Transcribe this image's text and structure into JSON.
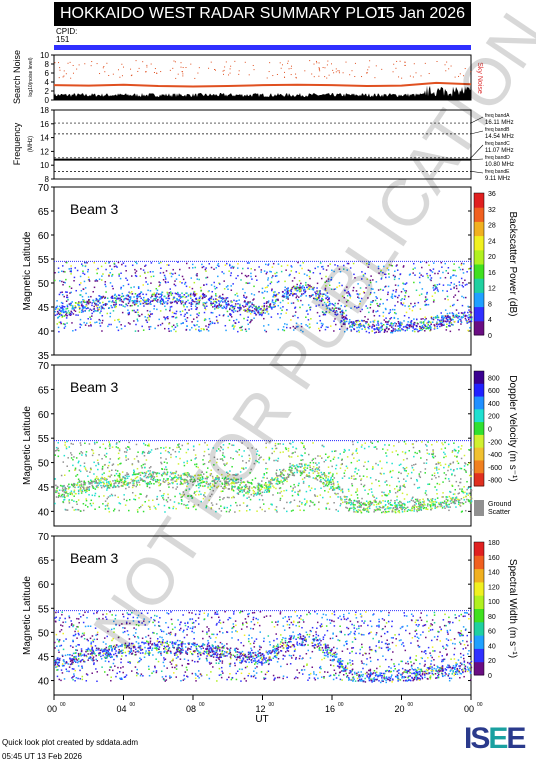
{
  "header": {
    "title": "HOKKAIDO WEST RADAR SUMMARY PLOT",
    "date": "15 Jan 2026"
  },
  "cpid": {
    "label": "CPID:",
    "value": "151"
  },
  "watermark": "NOT FOR PUBLICATION",
  "footer": {
    "line1": "Quick look plot created by sddata.adm",
    "line2": "05:45 UT 13 Feb 2026"
  },
  "logo": {
    "text": "ISEE"
  },
  "chart_data": [
    {
      "type": "line",
      "name": "noise",
      "ylabel": "Search Noise",
      "ylabel2": "log10(noise level)",
      "right_label": "Sky Noise",
      "yticks": [
        "0",
        "2",
        "4",
        "6",
        "8",
        "10"
      ],
      "ylim": [
        0,
        10
      ],
      "x": [
        0,
        2,
        4,
        6,
        8,
        10,
        12,
        14,
        16,
        18,
        20,
        22,
        24
      ],
      "series": [
        {
          "name": "Sky Noise",
          "values": [
            3.3,
            3.2,
            3.4,
            3.1,
            3.0,
            3.1,
            3.3,
            3.4,
            3.3,
            3.1,
            3.2,
            3.8,
            3.5
          ]
        },
        {
          "name": "",
          "values": [
            0.8,
            0.9,
            1.0,
            0.9,
            0.8,
            0.9,
            1.0,
            0.9,
            0.8,
            0.9,
            1.0,
            1.2,
            1.1
          ]
        }
      ]
    },
    {
      "type": "line",
      "name": "frequency",
      "ylabel": "Frequency",
      "ylabel2": "(MHz)",
      "yticks": [
        "8",
        "10",
        "12",
        "14",
        "16",
        "18"
      ],
      "ylim": [
        8,
        18
      ],
      "bands": [
        {
          "label": "freq bandA",
          "freq": "16.11 MHz",
          "value": 16.11
        },
        {
          "label": "freq bandB",
          "freq": "14.54 MHz",
          "value": 14.54
        },
        {
          "label": "freq bandC",
          "freq": "11.07 MHz",
          "value": 11.07
        },
        {
          "label": "freq bandD",
          "freq": "10.80 MHz",
          "value": 10.8
        },
        {
          "label": "freq bandE",
          "freq": "9.11 MHz",
          "value": 9.11
        }
      ],
      "operating": 10.8
    },
    {
      "type": "heatmap",
      "name": "power",
      "beam": "Beam  3",
      "ylabel": "Magnetic Latitude",
      "yticks": [
        "35",
        "40",
        "45",
        "50",
        "55",
        "60",
        "65",
        "70"
      ],
      "ylim": [
        35,
        70
      ],
      "colorbar": {
        "label": "Backscatter Power (dB)",
        "ticks": [
          "0",
          "4",
          "8",
          "12",
          "16",
          "20",
          "24",
          "28",
          "32",
          "36"
        ]
      }
    },
    {
      "type": "heatmap",
      "name": "velocity",
      "beam": "Beam  3",
      "ylabel": "Magnetic Latitude",
      "yticks": [
        "40",
        "45",
        "50",
        "55",
        "60",
        "65",
        "70"
      ],
      "ylim": [
        37,
        70
      ],
      "colorbar": {
        "label": "Doppler Velocity (m s⁻¹)",
        "ticks": [
          "800",
          "600",
          "400",
          "200",
          "0",
          "-200",
          "-400",
          "-600",
          "-800"
        ],
        "ground": "Ground\nScatter"
      }
    },
    {
      "type": "heatmap",
      "name": "width",
      "beam": "Beam  3",
      "ylabel": "Magnetic Latitude",
      "yticks": [
        "40",
        "45",
        "50",
        "55",
        "60",
        "65",
        "70"
      ],
      "ylim": [
        37,
        70
      ],
      "colorbar": {
        "label": "Spectral Width (m s⁻¹)",
        "ticks": [
          "0",
          "20",
          "40",
          "60",
          "80",
          "100",
          "120",
          "140",
          "160",
          "180"
        ]
      },
      "xticks": [
        "00",
        "04",
        "08",
        "12",
        "16",
        "20",
        "00"
      ],
      "xtick_sup": "00",
      "xlabel": "UT"
    }
  ]
}
